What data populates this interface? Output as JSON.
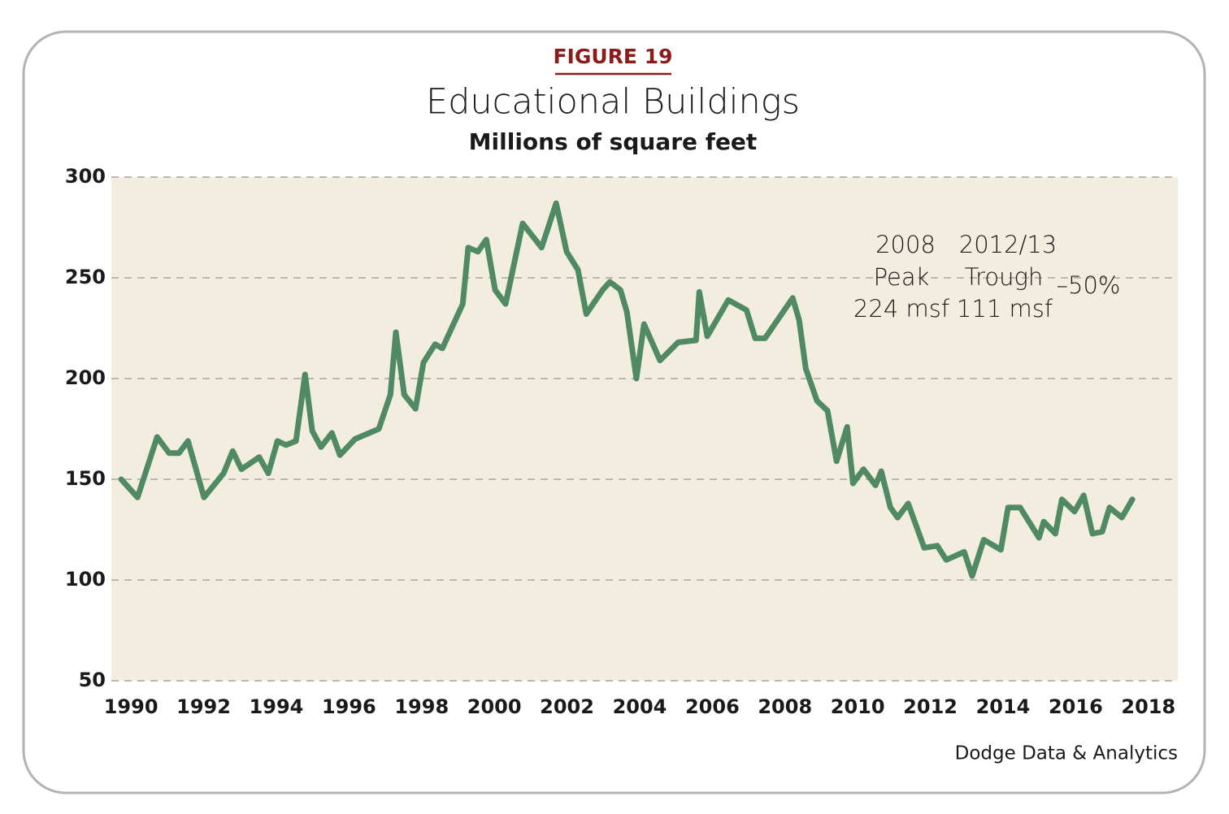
{
  "chart_data": {
    "type": "line",
    "figure_label": "FIGURE 19",
    "title": "Educational Buildings",
    "subtitle": "Millions of square feet",
    "source": "Dodge Data & Analytics",
    "annotations": [
      "2008",
      "Peak",
      "224 msf",
      "2012/13",
      "Trough",
      "111 msf",
      "–50%"
    ],
    "color": "#4f8a63",
    "x": [
      1989.73,
      1990.18,
      1990.72,
      1991.05,
      1991.32,
      1991.57,
      1992.01,
      1992.55,
      1992.8,
      1993.04,
      1993.53,
      1993.78,
      1994.03,
      1994.27,
      1994.54,
      1994.79,
      1994.99,
      1995.23,
      1995.53,
      1995.75,
      1996.17,
      1996.82,
      1997.14,
      1997.29,
      1997.52,
      1997.83,
      1998.05,
      1998.37,
      1998.57,
      1999.13,
      1999.28,
      1999.55,
      1999.78,
      2000.02,
      2000.31,
      2000.78,
      2001.3,
      2001.7,
      2001.99,
      2002.3,
      2002.53,
      2002.98,
      2003.18,
      2003.47,
      2003.65,
      2003.91,
      2004.12,
      2004.56,
      2005.06,
      2005.55,
      2005.64,
      2005.86,
      2006.44,
      2006.94,
      2007.18,
      2007.45,
      2008.21,
      2008.39,
      2008.57,
      2008.88,
      2009.17,
      2009.42,
      2009.71,
      2009.87,
      2010.16,
      2010.49,
      2010.65,
      2010.9,
      2011.1,
      2011.39,
      2011.83,
      2012.19,
      2012.44,
      2012.93,
      2013.15,
      2013.47,
      2013.94,
      2014.14,
      2014.47,
      2014.99,
      2015.12,
      2015.44,
      2015.62,
      2015.97,
      2016.22,
      2016.46,
      2016.73,
      2016.93,
      2017.27,
      2017.56
    ],
    "values": [
      150,
      141,
      171,
      163,
      163,
      169,
      141,
      153,
      164,
      155,
      161,
      153,
      169,
      167,
      169,
      202,
      174,
      166,
      173,
      162,
      170,
      175,
      192,
      223,
      192,
      185,
      208,
      217,
      215,
      237,
      265,
      263,
      269,
      244,
      237,
      277,
      265,
      287,
      263,
      254,
      232,
      244,
      248,
      244,
      233,
      200,
      227,
      209,
      218,
      219,
      243,
      221,
      239,
      234,
      220,
      220,
      240,
      229,
      205,
      189,
      184,
      159,
      176,
      148,
      155,
      147,
      154,
      136,
      131,
      138,
      116,
      117,
      110,
      114,
      102,
      120,
      115,
      136,
      136,
      121,
      129,
      123,
      140,
      134,
      142,
      123,
      124,
      136,
      131,
      140
    ],
    "xlim": [
      1989.46,
      2018.81
    ],
    "ylim": [
      50,
      300
    ],
    "xticks": [
      1990,
      1992,
      1994,
      1996,
      1998,
      2000,
      2002,
      2004,
      2006,
      2008,
      2010,
      2012,
      2014,
      2016,
      2018
    ],
    "yticks": [
      50,
      100,
      150,
      200,
      250,
      300
    ],
    "grid": true
  }
}
